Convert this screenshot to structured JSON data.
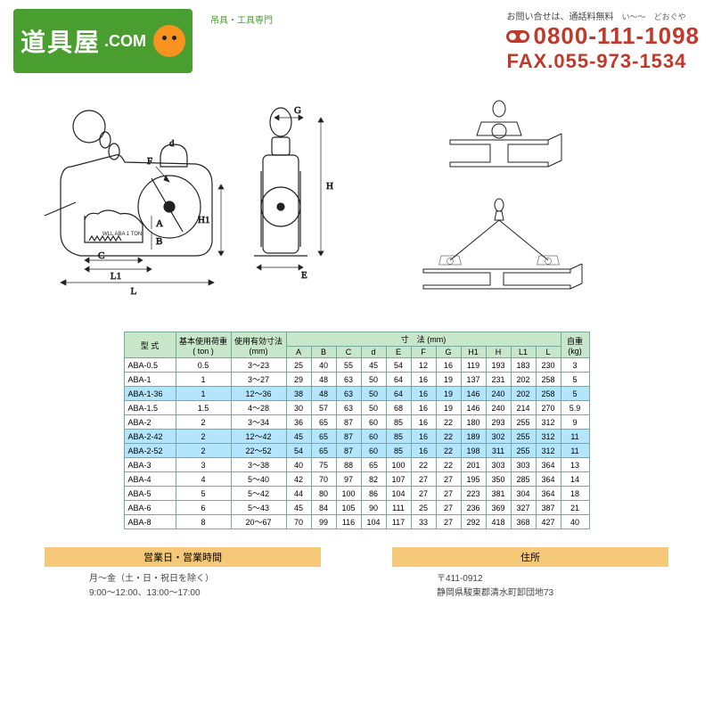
{
  "header": {
    "logo_main": "道具屋",
    "logo_dot": ".COM",
    "logo_tagline": "吊具・工具専門",
    "contact_label": "お問い合せは、通話料無料",
    "ruby1": "い～～",
    "ruby2": "どおぐや",
    "phone": "0800-111-1098",
    "fax": "FAX.055-973-1534"
  },
  "colors": {
    "brand_green": "#4a9d2f",
    "brand_red": "#c0392b",
    "brand_orange": "#f7931e",
    "table_header_bg": "#c8e6c9",
    "table_highlight_bg": "#b3e5fc",
    "footer_header_bg": "#f5c87a"
  },
  "diagram_labels": [
    "A",
    "B",
    "C",
    "d",
    "E",
    "F",
    "G",
    "H",
    "H1",
    "L",
    "L1"
  ],
  "table": {
    "head_row1": {
      "model": "型 式",
      "load": "基本使用荷重",
      "range": "使用有効寸法",
      "dims": "寸　法 (mm)",
      "weight": "自重"
    },
    "head_row1_units": {
      "load": "( ton )",
      "range": "(mm)",
      "weight": "(kg)"
    },
    "dim_cols": [
      "A",
      "B",
      "C",
      "d",
      "E",
      "F",
      "G",
      "H1",
      "H",
      "L1",
      "L"
    ],
    "rows": [
      {
        "model": "ABA-0.5",
        "load": "0.5",
        "range": "3～23",
        "A": "25",
        "B": "40",
        "C": "55",
        "d": "45",
        "E": "54",
        "F": "12",
        "G": "16",
        "H1": "119",
        "H": "193",
        "L1": "183",
        "L": "230",
        "wt": "3",
        "hl": false
      },
      {
        "model": "ABA-1",
        "load": "1",
        "range": "3～27",
        "A": "29",
        "B": "48",
        "C": "63",
        "d": "50",
        "E": "64",
        "F": "16",
        "G": "19",
        "H1": "137",
        "H": "231",
        "L1": "202",
        "L": "258",
        "wt": "5",
        "hl": false
      },
      {
        "model": "ABA-1-36",
        "load": "1",
        "range": "12～36",
        "A": "38",
        "B": "48",
        "C": "63",
        "d": "50",
        "E": "64",
        "F": "16",
        "G": "19",
        "H1": "146",
        "H": "240",
        "L1": "202",
        "L": "258",
        "wt": "5",
        "hl": true
      },
      {
        "model": "ABA-1.5",
        "load": "1.5",
        "range": "4～28",
        "A": "30",
        "B": "57",
        "C": "63",
        "d": "50",
        "E": "68",
        "F": "16",
        "G": "19",
        "H1": "146",
        "H": "240",
        "L1": "214",
        "L": "270",
        "wt": "5.9",
        "hl": false
      },
      {
        "model": "ABA-2",
        "load": "2",
        "range": "3～34",
        "A": "36",
        "B": "65",
        "C": "87",
        "d": "60",
        "E": "85",
        "F": "16",
        "G": "22",
        "H1": "180",
        "H": "293",
        "L1": "255",
        "L": "312",
        "wt": "9",
        "hl": false
      },
      {
        "model": "ABA-2-42",
        "load": "2",
        "range": "12～42",
        "A": "45",
        "B": "65",
        "C": "87",
        "d": "60",
        "E": "85",
        "F": "16",
        "G": "22",
        "H1": "189",
        "H": "302",
        "L1": "255",
        "L": "312",
        "wt": "11",
        "hl": true
      },
      {
        "model": "ABA-2-52",
        "load": "2",
        "range": "22～52",
        "A": "54",
        "B": "65",
        "C": "87",
        "d": "60",
        "E": "85",
        "F": "16",
        "G": "22",
        "H1": "198",
        "H": "311",
        "L1": "255",
        "L": "312",
        "wt": "11",
        "hl": true
      },
      {
        "model": "ABA-3",
        "load": "3",
        "range": "3～38",
        "A": "40",
        "B": "75",
        "C": "88",
        "d": "65",
        "E": "100",
        "F": "22",
        "G": "22",
        "H1": "201",
        "H": "303",
        "L1": "303",
        "L": "364",
        "wt": "13",
        "hl": false
      },
      {
        "model": "ABA-4",
        "load": "4",
        "range": "5～40",
        "A": "42",
        "B": "70",
        "C": "97",
        "d": "82",
        "E": "107",
        "F": "27",
        "G": "27",
        "H1": "195",
        "H": "350",
        "L1": "285",
        "L": "364",
        "wt": "14",
        "hl": false
      },
      {
        "model": "ABA-5",
        "load": "5",
        "range": "5～42",
        "A": "44",
        "B": "80",
        "C": "100",
        "d": "86",
        "E": "104",
        "F": "27",
        "G": "27",
        "H1": "223",
        "H": "381",
        "L1": "304",
        "L": "364",
        "wt": "18",
        "hl": false
      },
      {
        "model": "ABA-6",
        "load": "6",
        "range": "5～43",
        "A": "45",
        "B": "84",
        "C": "105",
        "d": "90",
        "E": "111",
        "F": "25",
        "G": "27",
        "H1": "236",
        "H": "369",
        "L1": "327",
        "L": "387",
        "wt": "21",
        "hl": false
      },
      {
        "model": "ABA-8",
        "load": "8",
        "range": "20～67",
        "A": "70",
        "B": "99",
        "C": "116",
        "d": "104",
        "E": "117",
        "F": "33",
        "G": "27",
        "H1": "292",
        "H": "418",
        "L1": "368",
        "L": "427",
        "wt": "40",
        "hl": false
      }
    ]
  },
  "footer": {
    "hours_hdr": "営業日・営業時間",
    "hours_l1": "月～金（土・日・祝日を除く）",
    "hours_l2": "9:00～12:00、13:00～17:00",
    "addr_hdr": "住所",
    "addr_l1": "〒411-0912",
    "addr_l2": "静岡県駿東郡清水町卸団地73"
  }
}
